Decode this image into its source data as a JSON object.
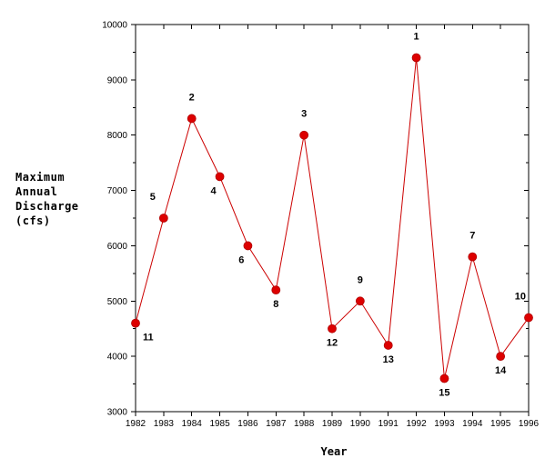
{
  "chart_data": {
    "type": "line",
    "ylabel_lines": [
      "Maximum",
      "Annual",
      "Discharge",
      "(cfs)"
    ],
    "xlabel": "Year",
    "x": [
      1982,
      1983,
      1984,
      1985,
      1986,
      1987,
      1988,
      1989,
      1990,
      1991,
      1992,
      1993,
      1994,
      1995,
      1996
    ],
    "values": [
      4600,
      6500,
      8300,
      7250,
      6000,
      5200,
      8000,
      4500,
      5000,
      4200,
      9400,
      3600,
      5800,
      4000,
      4700
    ],
    "ranks": [
      "11",
      "5",
      "2",
      "4",
      "6",
      "8",
      "3",
      "12",
      "9",
      "13",
      "1",
      "15",
      "7",
      "14",
      "10"
    ],
    "xlim": [
      1982,
      1996
    ],
    "ylim": [
      3000,
      10000
    ],
    "y_ticks": [
      3000,
      4000,
      5000,
      6000,
      7000,
      8000,
      9000,
      10000
    ],
    "y_minor_step": 500,
    "grid": false,
    "line_color": "#cc0000",
    "marker_color": "#dd0000"
  }
}
